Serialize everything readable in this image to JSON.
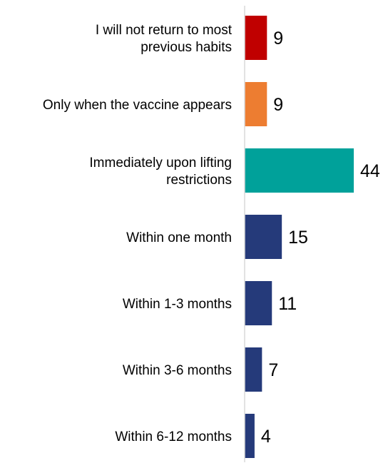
{
  "chart_data": {
    "type": "bar",
    "orientation": "horizontal",
    "categories": [
      "I will not return to most previous habits",
      "Only when the vaccine appears",
      "Immediately upon lifting restrictions",
      "Within one month",
      "Within 1-3 months",
      "Within 3-6 months",
      "Within 6-12 months"
    ],
    "category_lines": [
      [
        "I will not return to most",
        "previous habits"
      ],
      [
        "Only when the vaccine appears"
      ],
      [
        "Immediately upon lifting",
        "restrictions"
      ],
      [
        "Within one month"
      ],
      [
        "Within 1-3 months"
      ],
      [
        "Within 3-6 months"
      ],
      [
        "Within 6-12 months"
      ]
    ],
    "values": [
      9,
      9,
      44,
      15,
      11,
      7,
      4
    ],
    "value_labels": [
      "9",
      "9",
      "44",
      "15",
      "11",
      "7",
      "4"
    ],
    "colors": [
      "#c00000",
      "#ed7d31",
      "#00a19a",
      "#253a7a",
      "#253a7a",
      "#253a7a",
      "#253a7a"
    ],
    "axis_color": "#d9d9d9",
    "xlim": [
      0,
      44
    ],
    "grid": false,
    "legend": "none",
    "title": "",
    "xlabel": "",
    "ylabel": ""
  }
}
